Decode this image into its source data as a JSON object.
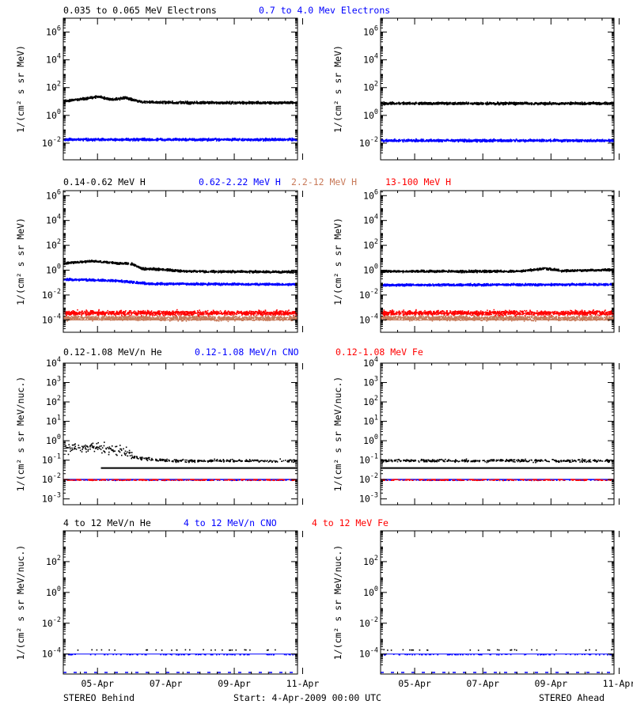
{
  "footer": {
    "left": "STEREO Behind",
    "center": "Start:  4-Apr-2009 00:00 UTC",
    "right": "STEREO Ahead"
  },
  "time_axis": {
    "ticks": [
      "05-Apr",
      "07-Apr",
      "09-Apr",
      "11-Apr"
    ],
    "tick_days": [
      1,
      3,
      5,
      7
    ],
    "range_days": [
      0.0,
      6.85
    ]
  },
  "rows": [
    {
      "legend": [
        {
          "text": "0.035 to 0.065 MeV Electrons",
          "color": "#000000"
        },
        {
          "text": "0.7 to 4.0 Mev Electrons",
          "color": "#0000ff"
        }
      ],
      "ylabel": "1/(cm² s sr MeV)",
      "ylim_log10": [
        -3.2,
        7.0
      ],
      "yticks": [
        {
          "exp": 6,
          "label": "10^6"
        },
        {
          "exp": 4,
          "label": "10^4"
        },
        {
          "exp": 2,
          "label": "10^2"
        },
        {
          "exp": 0,
          "label": "10^0"
        },
        {
          "exp": -2,
          "label": "10^-2"
        }
      ]
    },
    {
      "legend": [
        {
          "text": "0.14-0.62 MeV H",
          "color": "#000000"
        },
        {
          "text": "0.62-2.22 MeV H",
          "color": "#0000ff"
        },
        {
          "text": "2.2-12 MeV H",
          "color": "#c87a5a"
        },
        {
          "text": "13-100 MeV H",
          "color": "#ff0000"
        }
      ],
      "ylabel": "1/(cm² s sr MeV)",
      "ylim_log10": [
        -5.0,
        6.4
      ],
      "yticks": [
        {
          "exp": 6,
          "label": "10^6"
        },
        {
          "exp": 4,
          "label": "10^4"
        },
        {
          "exp": 2,
          "label": "10^2"
        },
        {
          "exp": 0,
          "label": "10^0"
        },
        {
          "exp": -2,
          "label": "10^-2"
        },
        {
          "exp": -4,
          "label": "10^-4"
        }
      ]
    },
    {
      "legend": [
        {
          "text": "0.12-1.08 MeV/n He",
          "color": "#000000"
        },
        {
          "text": "0.12-1.08 MeV/n CNO",
          "color": "#0000ff"
        },
        {
          "text": "0.12-1.08 MeV Fe",
          "color": "#ff0000"
        }
      ],
      "ylabel": "1/(cm² s sr MeV/nuc.)",
      "ylim_log10": [
        -3.3,
        4.0
      ],
      "yticks": [
        {
          "exp": 4,
          "label": "10^4"
        },
        {
          "exp": 3,
          "label": "10^3"
        },
        {
          "exp": 2,
          "label": "10^2"
        },
        {
          "exp": 1,
          "label": "10^1"
        },
        {
          "exp": 0,
          "label": "10^0"
        },
        {
          "exp": -1,
          "label": "10^-1"
        },
        {
          "exp": -2,
          "label": "10^-2"
        },
        {
          "exp": -3,
          "label": "10^-3"
        }
      ]
    },
    {
      "legend": [
        {
          "text": "4 to 12 MeV/n He",
          "color": "#000000"
        },
        {
          "text": "4 to 12 MeV/n CNO",
          "color": "#0000ff"
        },
        {
          "text": "4 to 12 MeV Fe",
          "color": "#ff0000"
        }
      ],
      "ylabel": "1/(cm² s sr MeV/nuc.)",
      "ylim_log10": [
        -5.3,
        4.0
      ],
      "yticks": [
        {
          "exp": 2,
          "label": "10^2"
        },
        {
          "exp": 0,
          "label": "10^0"
        },
        {
          "exp": -2,
          "label": "10^-2"
        },
        {
          "exp": -4,
          "label": "10^-4"
        }
      ]
    }
  ],
  "chart_data": [
    {
      "type": "scatter",
      "row": 0,
      "spacecraft": "STEREO Behind",
      "scale": "log",
      "ylim": [
        0.00063,
        10000000.0
      ],
      "series": [
        {
          "name": "0.035 to 0.065 MeV Electrons",
          "color": "#000000",
          "profile": [
            [
              0,
              12
            ],
            [
              0.5,
              16
            ],
            [
              1.0,
              25
            ],
            [
              1.4,
              15
            ],
            [
              1.8,
              20
            ],
            [
              2.3,
              10
            ],
            [
              3.5,
              9
            ],
            [
              5.0,
              9
            ],
            [
              6.85,
              9
            ]
          ]
        },
        {
          "name": "0.7 to 4.0 Mev Electrons",
          "color": "#0000ff",
          "profile": [
            [
              0,
              0.02
            ],
            [
              6.85,
              0.02
            ]
          ]
        }
      ]
    },
    {
      "type": "scatter",
      "row": 0,
      "spacecraft": "STEREO Ahead",
      "scale": "log",
      "ylim": [
        0.00063,
        10000000.0
      ],
      "series": [
        {
          "name": "0.035 to 0.065 MeV Electrons",
          "color": "#000000",
          "profile": [
            [
              0,
              8
            ],
            [
              6.85,
              8
            ]
          ]
        },
        {
          "name": "0.7 to 4.0 Mev Electrons",
          "color": "#0000ff",
          "profile": [
            [
              0,
              0.017
            ],
            [
              6.85,
              0.017
            ]
          ]
        }
      ]
    },
    {
      "type": "scatter",
      "row": 1,
      "spacecraft": "STEREO Behind",
      "scale": "log",
      "ylim": [
        1e-05,
        2500000.0
      ],
      "series": [
        {
          "name": "0.14-0.62 MeV H",
          "color": "#000000",
          "profile": [
            [
              0,
              4
            ],
            [
              0.8,
              6
            ],
            [
              1.6,
              4
            ],
            [
              2.0,
              3.5
            ],
            [
              2.3,
              1.5
            ],
            [
              3.0,
              1.2
            ],
            [
              3.5,
              0.9
            ],
            [
              6.85,
              0.8
            ]
          ]
        },
        {
          "name": "0.62-2.22 MeV H",
          "color": "#0000ff",
          "profile": [
            [
              0,
              0.2
            ],
            [
              1.5,
              0.16
            ],
            [
              2.5,
              0.09
            ],
            [
              6.85,
              0.08
            ]
          ]
        },
        {
          "name": "2.2-12 MeV H",
          "color": "#c87a5a",
          "profile": [
            [
              0,
              0.00015
            ],
            [
              6.85,
              0.00015
            ]
          ]
        },
        {
          "name": "13-100 MeV H",
          "color": "#ff0000",
          "profile": [
            [
              0,
              0.0004
            ],
            [
              6.85,
              0.0004
            ]
          ]
        }
      ]
    },
    {
      "type": "scatter",
      "row": 1,
      "spacecraft": "STEREO Ahead",
      "scale": "log",
      "ylim": [
        1e-05,
        2500000.0
      ],
      "series": [
        {
          "name": "0.14-0.62 MeV H",
          "color": "#000000",
          "profile": [
            [
              0,
              0.9
            ],
            [
              4.0,
              0.9
            ],
            [
              4.8,
              1.5
            ],
            [
              5.3,
              1.0
            ],
            [
              6.85,
              1.2
            ]
          ]
        },
        {
          "name": "0.62-2.22 MeV H",
          "color": "#0000ff",
          "profile": [
            [
              0,
              0.07
            ],
            [
              6.85,
              0.08
            ]
          ]
        },
        {
          "name": "2.2-12 MeV H",
          "color": "#c87a5a",
          "profile": [
            [
              0,
              0.00015
            ],
            [
              6.85,
              0.00015
            ]
          ]
        },
        {
          "name": "13-100 MeV H",
          "color": "#ff0000",
          "profile": [
            [
              0,
              0.0004
            ],
            [
              6.85,
              0.0004
            ]
          ]
        }
      ]
    },
    {
      "type": "scatter",
      "row": 2,
      "spacecraft": "STEREO Behind",
      "scale": "log",
      "ylim": [
        0.0005,
        10000.0
      ],
      "series": [
        {
          "name": "0.12-1.08 MeV/n He",
          "color": "#000000",
          "profile": [
            [
              0,
              0.45
            ],
            [
              1.0,
              0.5
            ],
            [
              1.8,
              0.3
            ],
            [
              2.0,
              0.15
            ],
            [
              3.0,
              0.1
            ],
            [
              6.85,
              0.1
            ]
          ]
        },
        {
          "name": "0.12-1.08 MeV/n CNO",
          "color": "#0000ff",
          "profile": [
            [
              0,
              0.01
            ],
            [
              6.85,
              0.01
            ]
          ]
        },
        {
          "name": "0.12-1.08 MeV Fe",
          "color": "#ff0000",
          "profile": [
            [
              0,
              0.01
            ],
            [
              6.85,
              0.01
            ]
          ]
        }
      ]
    },
    {
      "type": "scatter",
      "row": 2,
      "spacecraft": "STEREO Ahead",
      "scale": "log",
      "ylim": [
        0.0005,
        10000.0
      ],
      "series": [
        {
          "name": "0.12-1.08 MeV/n He",
          "color": "#000000",
          "profile": [
            [
              0,
              0.1
            ],
            [
              6.85,
              0.1
            ]
          ]
        },
        {
          "name": "0.12-1.08 MeV/n CNO",
          "color": "#0000ff",
          "profile": [
            [
              0,
              0.01
            ],
            [
              6.85,
              0.01
            ]
          ]
        },
        {
          "name": "0.12-1.08 MeV Fe",
          "color": "#ff0000",
          "profile": [
            [
              0,
              0.01
            ],
            [
              6.85,
              0.01
            ]
          ]
        }
      ]
    },
    {
      "type": "scatter",
      "row": 3,
      "spacecraft": "STEREO Behind",
      "scale": "log",
      "ylim": [
        5e-06,
        10000.0
      ],
      "series": [
        {
          "name": "4 to 12 MeV/n He",
          "color": "#000000",
          "profile": [
            [
              0,
              0.0002
            ],
            [
              6.85,
              0.0002
            ]
          ]
        },
        {
          "name": "4 to 12 MeV/n CNO",
          "color": "#0000ff",
          "profile": [
            [
              0,
              0.0001
            ],
            [
              6.85,
              0.0001
            ]
          ]
        },
        {
          "name": "4 to 12 MeV Fe",
          "color": "#ff0000",
          "profile": []
        }
      ]
    },
    {
      "type": "scatter",
      "row": 3,
      "spacecraft": "STEREO Ahead",
      "scale": "log",
      "ylim": [
        5e-06,
        10000.0
      ],
      "series": [
        {
          "name": "4 to 12 MeV/n He",
          "color": "#000000",
          "profile": [
            [
              0,
              0.0002
            ],
            [
              6.85,
              0.0002
            ]
          ]
        },
        {
          "name": "4 to 12 MeV/n CNO",
          "color": "#0000ff",
          "profile": [
            [
              0,
              0.0001
            ],
            [
              6.85,
              0.0001
            ]
          ]
        },
        {
          "name": "4 to 12 MeV Fe",
          "color": "#ff0000",
          "profile": []
        }
      ]
    }
  ]
}
